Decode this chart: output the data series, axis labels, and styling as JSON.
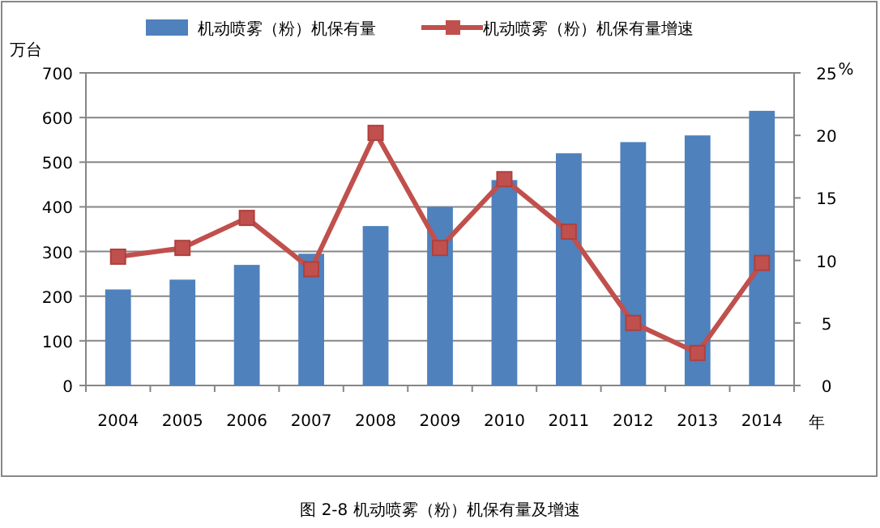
{
  "chart_data": {
    "type": "bar",
    "categories": [
      "2004",
      "2005",
      "2006",
      "2007",
      "2008",
      "2009",
      "2010",
      "2011",
      "2012",
      "2013",
      "2014"
    ],
    "series": [
      {
        "name": "机动喷雾（粉）机保有量",
        "color": "#4f81bd",
        "values": [
          215,
          237,
          270,
          295,
          357,
          400,
          460,
          520,
          545,
          560,
          615
        ]
      },
      {
        "name": "机动喷雾（粉）机保有量增速",
        "type": "line",
        "axis": "y2",
        "color": "#c0504d",
        "marker": "square",
        "values": [
          10.3,
          11.0,
          13.4,
          9.3,
          20.2,
          11.0,
          16.5,
          12.3,
          5.0,
          2.6,
          9.8
        ]
      }
    ],
    "ylabel": "万台",
    "y2label": "%",
    "xlabel": "年",
    "ylim": [
      0,
      700
    ],
    "yticks": [
      0,
      100,
      200,
      300,
      400,
      500,
      600,
      700
    ],
    "y2lim": [
      0,
      25
    ],
    "y2ticks": [
      0,
      5,
      10,
      15,
      20,
      25
    ],
    "grid": "y",
    "legend": "top",
    "annotations": [
      "图 2-8  机动喷雾（粉）机保有量及增速"
    ]
  }
}
